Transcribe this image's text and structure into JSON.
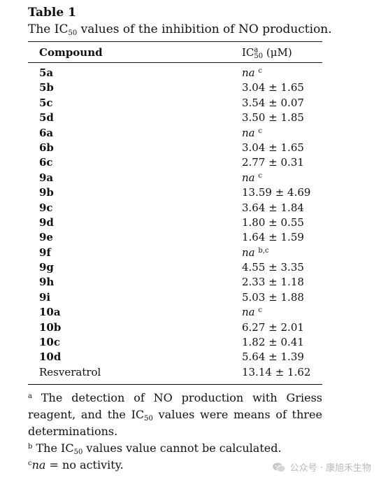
{
  "table_label": "Table 1",
  "caption_pre": "The IC",
  "caption_sub": "50",
  "caption_post": " values of the inhibition of NO production.",
  "header": {
    "compound": "Compound",
    "value_pre": "IC",
    "value_sup": "a",
    "value_sub": "50",
    "value_post": " (μM)"
  },
  "rows": [
    {
      "compound": "5a",
      "value": "na",
      "sup": "c",
      "na": true
    },
    {
      "compound": "5b",
      "value": "3.04 ± 1.65"
    },
    {
      "compound": "5c",
      "value": "3.54 ± 0.07"
    },
    {
      "compound": "5d",
      "value": "3.50 ± 1.85"
    },
    {
      "compound": "6a",
      "value": "na",
      "sup": "c",
      "na": true
    },
    {
      "compound": "6b",
      "value": "3.04 ± 1.65"
    },
    {
      "compound": "6c",
      "value": "2.77 ± 0.31"
    },
    {
      "compound": "9a",
      "value": "na",
      "sup": "c",
      "na": true
    },
    {
      "compound": "9b",
      "value": "13.59 ± 4.69"
    },
    {
      "compound": "9c",
      "value": "3.64 ± 1.84"
    },
    {
      "compound": "9d",
      "value": "1.80 ± 0.55"
    },
    {
      "compound": "9e",
      "value": "1.64 ± 1.59"
    },
    {
      "compound": "9f",
      "value": "na",
      "sup": "b,c",
      "na": true
    },
    {
      "compound": "9g",
      "value": "4.55 ± 3.35"
    },
    {
      "compound": "9h",
      "value": "2.33 ± 1.18"
    },
    {
      "compound": "9i",
      "value": "5.03 ± 1.88"
    },
    {
      "compound": "10a",
      "value": "na",
      "sup": "c",
      "na": true
    },
    {
      "compound": "10b",
      "value": "6.27 ± 2.01"
    },
    {
      "compound": "10c",
      "value": "1.82 ± 0.41"
    },
    {
      "compound": "10d",
      "value": "5.64 ± 1.39"
    },
    {
      "compound": "Resveratrol",
      "value": "13.14 ± 1.62",
      "plain": true
    }
  ],
  "notes": {
    "a_mark": "a",
    "a_pre": " The detection of NO production with Griess reagent, and the IC",
    "a_sub": "50",
    "a_post": " values were means of three determinations.",
    "b_mark": "b",
    "b_pre": " The IC",
    "b_sub": "50",
    "b_post": " values value cannot be calculated.",
    "c_mark": "c",
    "c_na": "na",
    "c_post": " = no activity."
  },
  "watermark": {
    "text": "公众号 · 康旭禾生物",
    "icon": "wechat-icon",
    "color": "#b8b8b8"
  }
}
